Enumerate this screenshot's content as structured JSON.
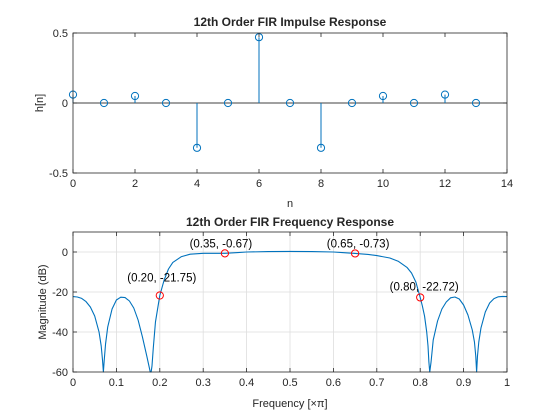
{
  "colors": {
    "series": "#0072bd",
    "marker_highlight": "#ff0000",
    "axis": "#262626",
    "grid": "#dedede"
  },
  "chart_data": [
    {
      "type": "stem",
      "title": "12th Order FIR Impulse Response",
      "xlabel": "n",
      "ylabel": "h[n]",
      "xlim": [
        0,
        14
      ],
      "ylim": [
        -0.5,
        0.5
      ],
      "xticks": [
        0,
        2,
        4,
        6,
        8,
        10,
        12,
        14
      ],
      "yticks": [
        -0.5,
        0,
        0.5
      ],
      "xtick_labels": [
        "0",
        "2",
        "4",
        "6",
        "8",
        "10",
        "12",
        "14"
      ],
      "ytick_labels": [
        "-0.5",
        "0",
        "0.5"
      ],
      "grid": false,
      "baseline": 0,
      "x": [
        0,
        1,
        2,
        3,
        4,
        5,
        6,
        7,
        8,
        9,
        10,
        11,
        12,
        13
      ],
      "values": [
        0.06,
        0.0,
        0.05,
        0.0,
        -0.32,
        0.0,
        0.47,
        0.0,
        -0.32,
        0.0,
        0.05,
        0.0,
        0.06,
        0.0
      ]
    },
    {
      "type": "line",
      "title": "12th Order FIR Frequency Response",
      "xlabel": "Frequency [×π]",
      "ylabel": "Magnitude (dB)",
      "xlim": [
        0,
        1
      ],
      "ylim": [
        -60,
        10
      ],
      "xticks": [
        0,
        0.1,
        0.2,
        0.3,
        0.4,
        0.5,
        0.6,
        0.7,
        0.8,
        0.9,
        1
      ],
      "yticks": [
        -60,
        -40,
        -20,
        0
      ],
      "xtick_labels": [
        "0",
        "0.1",
        "0.2",
        "0.3",
        "0.4",
        "0.5",
        "0.6",
        "0.7",
        "0.8",
        "0.9",
        "1"
      ],
      "ytick_labels": [
        "-60",
        "-40",
        "-20",
        "0"
      ],
      "grid": true,
      "x": [
        0,
        0.01,
        0.02,
        0.03,
        0.04,
        0.05,
        0.06,
        0.065,
        0.068,
        0.07,
        0.072,
        0.075,
        0.08,
        0.09,
        0.1,
        0.11,
        0.12,
        0.13,
        0.14,
        0.15,
        0.16,
        0.17,
        0.175,
        0.178,
        0.18,
        0.182,
        0.185,
        0.19,
        0.2,
        0.21,
        0.22,
        0.23,
        0.25,
        0.27,
        0.3,
        0.32,
        0.35,
        0.38,
        0.4,
        0.45,
        0.5,
        0.55,
        0.6,
        0.62,
        0.65,
        0.68,
        0.7,
        0.73,
        0.75,
        0.77,
        0.78,
        0.79,
        0.8,
        0.805,
        0.81,
        0.815,
        0.818,
        0.82,
        0.822,
        0.825,
        0.83,
        0.84,
        0.85,
        0.86,
        0.87,
        0.88,
        0.89,
        0.9,
        0.91,
        0.92,
        0.925,
        0.928,
        0.93,
        0.932,
        0.935,
        0.94,
        0.95,
        0.96,
        0.97,
        0.98,
        0.99,
        1.0
      ],
      "values": [
        -22.3,
        -22.5,
        -23.2,
        -24.8,
        -27.5,
        -32,
        -40,
        -47,
        -54,
        -60,
        -54,
        -46,
        -37.5,
        -28.5,
        -24,
        -22.6,
        -22.8,
        -24.5,
        -28,
        -34,
        -42.5,
        -52,
        -57,
        -60,
        -60,
        -57,
        -48,
        -35,
        -21.75,
        -14,
        -8.5,
        -5.2,
        -2.3,
        -1.1,
        -0.67,
        -0.67,
        -0.67,
        -0.3,
        0,
        0.2,
        0.3,
        0.2,
        0,
        -0.3,
        -0.73,
        -1.2,
        -1.8,
        -3,
        -4.7,
        -7.8,
        -10.5,
        -15,
        -22.72,
        -27,
        -32,
        -40,
        -47,
        -55,
        -60,
        -55,
        -44,
        -34.5,
        -28.5,
        -25,
        -22.9,
        -22.5,
        -23.5,
        -26.5,
        -31.5,
        -39,
        -45,
        -52,
        -60,
        -52,
        -45,
        -38,
        -30,
        -25.5,
        -23.3,
        -22.4,
        -22.2,
        -22.3
      ],
      "annotations": [
        {
          "x": 0.2,
          "y": -21.75,
          "label": "(0.20, -21.75)"
        },
        {
          "x": 0.35,
          "y": -0.67,
          "label": "(0.35, -0.67)"
        },
        {
          "x": 0.65,
          "y": -0.73,
          "label": "(0.65, -0.73)"
        },
        {
          "x": 0.8,
          "y": -22.72,
          "label": "(0.80, -22.72)"
        }
      ]
    }
  ]
}
